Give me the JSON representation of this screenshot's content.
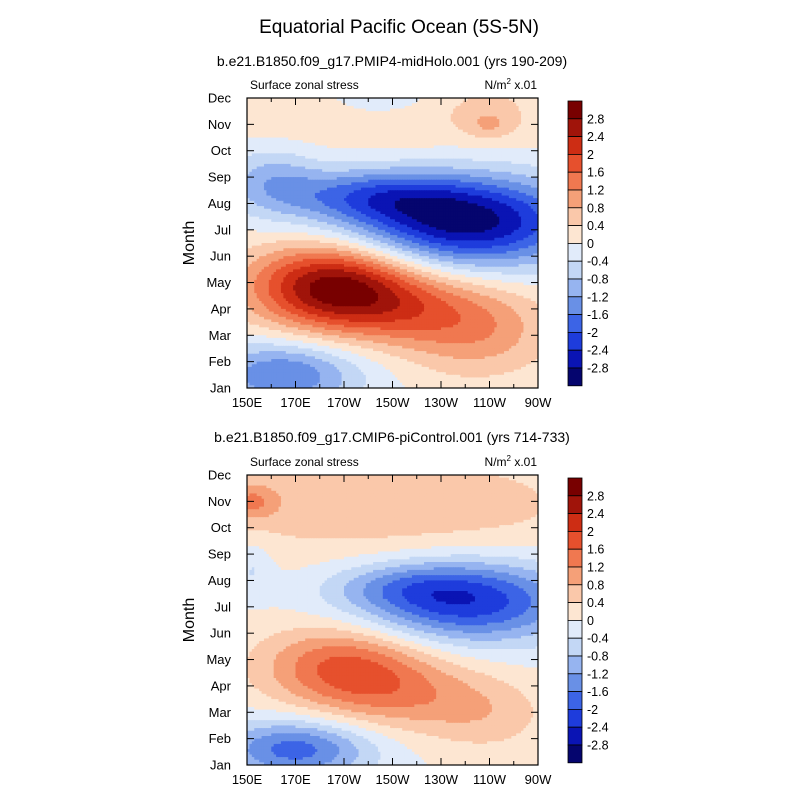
{
  "figure": {
    "title": "Equatorial Pacific Ocean (5S-5N)"
  },
  "colors": {
    "levels": [
      -2.8,
      -2.4,
      -2.0,
      -1.6,
      -1.2,
      -0.8,
      -0.4,
      0,
      0.4,
      0.8,
      1.2,
      1.6,
      2.0,
      2.4,
      2.8
    ],
    "fills": [
      "#05056e",
      "#0a14b4",
      "#1e3cdc",
      "#3c64e6",
      "#6990e6",
      "#96b4f0",
      "#c3d7f5",
      "#e1ebfa",
      "#fde6d2",
      "#fac8aa",
      "#f5a078",
      "#f07850",
      "#e6502d",
      "#cd2d14",
      "#a0140a",
      "#780000"
    ]
  },
  "chart_data": [
    {
      "type": "heatmap",
      "subtitle": "b.e21.B1850.f09_g17.PMIP4-midHolo.001 (yrs 190-209)",
      "left_label": "Surface zonal stress",
      "right_label_main": "N/m",
      "right_label_sup": "2",
      "right_label_tail": " x.01",
      "ylabel": "Month",
      "x_tick_labels": [
        "150E",
        "170E",
        "170W",
        "150W",
        "130W",
        "110W",
        "90W"
      ],
      "x_tick_lon": [
        150,
        170,
        190,
        210,
        230,
        250,
        270
      ],
      "xlim": [
        150,
        270
      ],
      "months": [
        "Jan",
        "Feb",
        "Mar",
        "Apr",
        "May",
        "Jun",
        "Jul",
        "Aug",
        "Sep",
        "Oct",
        "Nov",
        "Dec"
      ],
      "colorbar_labels": [
        "2.8",
        "2.4",
        "2",
        "1.6",
        "1.2",
        "0.8",
        "0.4",
        "0",
        "-0.4",
        "-0.8",
        "-1.2",
        "-1.6",
        "-2",
        "-2.4",
        "-2.8"
      ],
      "features": [
        {
          "lon": 240,
          "month": 6.3,
          "sx": 34,
          "sy": 1.2,
          "amp": -3.0
        },
        {
          "lon": 200,
          "month": 7.3,
          "sx": 26,
          "sy": 0.7,
          "amp": -1.3
        },
        {
          "lon": 160,
          "month": 7.9,
          "sx": 14,
          "sy": 0.9,
          "amp": -0.9
        },
        {
          "lon": 185,
          "month": 4.0,
          "sx": 24,
          "sy": 1.1,
          "amp": 2.6
        },
        {
          "lon": 210,
          "month": 3.0,
          "sx": 30,
          "sy": 1.0,
          "amp": 1.3
        },
        {
          "lon": 245,
          "month": 2.0,
          "sx": 22,
          "sy": 1.2,
          "amp": 0.9
        },
        {
          "lon": 165,
          "month": 0.5,
          "sx": 22,
          "sy": 0.9,
          "amp": -1.6
        },
        {
          "lon": 215,
          "month": 10.8,
          "sx": 60,
          "sy": 1.2,
          "amp": 0.5
        },
        {
          "lon": 250,
          "month": 10.0,
          "sx": 7,
          "sy": 0.4,
          "amp": 0.6
        },
        {
          "lon": 205,
          "month": 11.2,
          "sx": 16,
          "sy": 0.6,
          "amp": -0.9
        }
      ]
    },
    {
      "type": "heatmap",
      "subtitle": "b.e21.B1850.f09_g17.CMIP6-piControl.001 (yrs 714-733)",
      "left_label": "Surface zonal stress",
      "right_label_main": "N/m",
      "right_label_sup": "2",
      "right_label_tail": " x.01",
      "ylabel": "Month",
      "x_tick_labels": [
        "150E",
        "170E",
        "170W",
        "150W",
        "130W",
        "110W",
        "90W"
      ],
      "x_tick_lon": [
        150,
        170,
        190,
        210,
        230,
        250,
        270
      ],
      "xlim": [
        150,
        270
      ],
      "months": [
        "Jan",
        "Feb",
        "Mar",
        "Apr",
        "May",
        "Jun",
        "Jul",
        "Aug",
        "Sep",
        "Oct",
        "Nov",
        "Dec"
      ],
      "colorbar_labels": [
        "2.8",
        "2.4",
        "2",
        "1.6",
        "1.2",
        "0.8",
        "0.4",
        "0",
        "-0.4",
        "-0.8",
        "-1.2",
        "-1.6",
        "-2",
        "-2.4",
        "-2.8"
      ],
      "features": [
        {
          "lon": 240,
          "month": 6.2,
          "sx": 32,
          "sy": 1.1,
          "amp": -2.3
        },
        {
          "lon": 215,
          "month": 6.8,
          "sx": 22,
          "sy": 0.6,
          "amp": -0.6
        },
        {
          "lon": 190,
          "month": 3.8,
          "sx": 24,
          "sy": 1.1,
          "amp": 1.6
        },
        {
          "lon": 215,
          "month": 2.6,
          "sx": 26,
          "sy": 1.0,
          "amp": 0.9
        },
        {
          "lon": 250,
          "month": 1.8,
          "sx": 18,
          "sy": 1.0,
          "amp": 0.5
        },
        {
          "lon": 170,
          "month": 0.6,
          "sx": 22,
          "sy": 0.8,
          "amp": -1.8
        },
        {
          "lon": 210,
          "month": 9.8,
          "sx": 60,
          "sy": 1.5,
          "amp": 0.7
        },
        {
          "lon": 152,
          "month": 10.0,
          "sx": 8,
          "sy": 0.5,
          "amp": 0.9
        },
        {
          "lon": 152,
          "month": 7.5,
          "sx": 6,
          "sy": 0.7,
          "amp": -0.5
        }
      ]
    }
  ]
}
